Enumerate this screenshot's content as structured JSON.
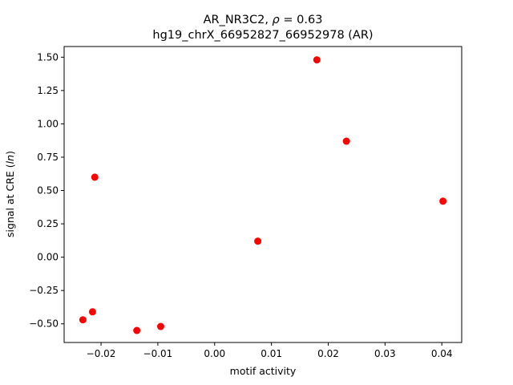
{
  "chart_data": {
    "type": "scatter",
    "title_line1": "AR_NR3C2, ",
    "title_rho_symbol": "ρ",
    "title_rho_value": " = 0.63",
    "title_line2": "hg19_chrX_66952827_66952978 (AR)",
    "xlabel": "motif activity",
    "ylabel_prefix": "signal at CRE (",
    "ylabel_italic": "ln",
    "ylabel_suffix": ")",
    "xlim": [
      -0.0265,
      0.0435
    ],
    "ylim": [
      -0.64,
      1.58
    ],
    "x_ticks": [
      -0.02,
      -0.01,
      0.0,
      0.01,
      0.02,
      0.03,
      0.04
    ],
    "x_tick_labels": [
      "−0.02",
      "−0.01",
      "0.00",
      "0.01",
      "0.02",
      "0.03",
      "0.04"
    ],
    "y_ticks": [
      -0.5,
      -0.25,
      0.0,
      0.25,
      0.5,
      0.75,
      1.0,
      1.25,
      1.5
    ],
    "y_tick_labels": [
      "−0.50",
      "−0.25",
      "0.00",
      "0.25",
      "0.50",
      "0.75",
      "1.00",
      "1.25",
      "1.50"
    ],
    "grid": false,
    "marker_color": "#ff0000",
    "points": [
      {
        "x": -0.0232,
        "y": -0.47
      },
      {
        "x": -0.0215,
        "y": -0.41
      },
      {
        "x": -0.0211,
        "y": 0.6
      },
      {
        "x": -0.0137,
        "y": -0.55
      },
      {
        "x": -0.0095,
        "y": -0.52
      },
      {
        "x": 0.0076,
        "y": 0.12
      },
      {
        "x": 0.018,
        "y": 1.48
      },
      {
        "x": 0.0232,
        "y": 0.87
      },
      {
        "x": 0.0402,
        "y": 0.42
      }
    ]
  }
}
